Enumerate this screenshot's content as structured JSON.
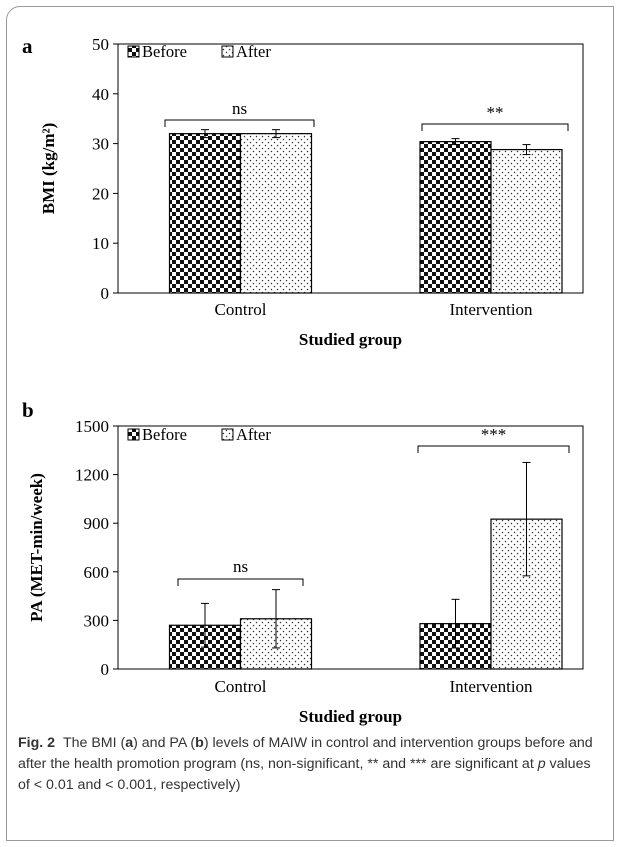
{
  "chart_data": [
    {
      "panel": "a",
      "type": "bar",
      "categories": [
        "Control",
        "Intervention"
      ],
      "series": [
        {
          "name": "Before",
          "values": [
            32.0,
            30.4
          ],
          "errors": [
            0.8,
            0.6
          ]
        },
        {
          "name": "After",
          "values": [
            32.0,
            28.8
          ],
          "errors": [
            0.8,
            1.0
          ]
        }
      ],
      "xlabel": "Studied group",
      "ylabel": "BMI (kg/m²)",
      "ylim": [
        0,
        50
      ],
      "yticks": [
        "0",
        "10",
        "20",
        "30",
        "40",
        "50"
      ],
      "legend": "top-left",
      "annotations": [
        "ns",
        "**"
      ]
    },
    {
      "panel": "b",
      "type": "bar",
      "categories": [
        "Control",
        "Intervention"
      ],
      "series": [
        {
          "name": "Before",
          "values": [
            270,
            280
          ],
          "errors": [
            135,
            150
          ]
        },
        {
          "name": "After",
          "values": [
            310,
            925
          ],
          "errors": [
            180,
            350
          ]
        }
      ],
      "xlabel": "Studied group",
      "ylabel": "PA (MET-min/week)",
      "ylim": [
        0,
        1500
      ],
      "yticks": [
        "0",
        "300",
        "600",
        "900",
        "1200",
        "1500"
      ],
      "legend": "top-left",
      "annotations": [
        "ns",
        "***"
      ]
    }
  ],
  "caption": {
    "fig_label": "Fig. 2",
    "parts": [
      "The BMI (",
      "a",
      ") and PA (",
      "b",
      ") levels of MAIW in control and intervention groups before and after the health promotion program (ns, non-significant, ** and *** are significant at ",
      "p",
      " values of < 0.01 and < 0.001, respectively)"
    ]
  },
  "colors": {
    "axis": "#000000",
    "frame": "#9a9a9a",
    "caption": "#333333"
  }
}
